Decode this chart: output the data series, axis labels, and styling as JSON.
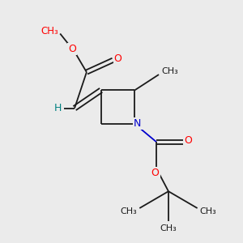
{
  "background_color": "#ebebeb",
  "bond_color": "#1a1a1a",
  "oxygen_color": "#ff0000",
  "nitrogen_color": "#0000cc",
  "hydrogen_color": "#008080",
  "figsize": [
    3.0,
    3.0
  ],
  "dpi": 100,
  "xlim": [
    0,
    10
  ],
  "ylim": [
    0,
    10
  ]
}
